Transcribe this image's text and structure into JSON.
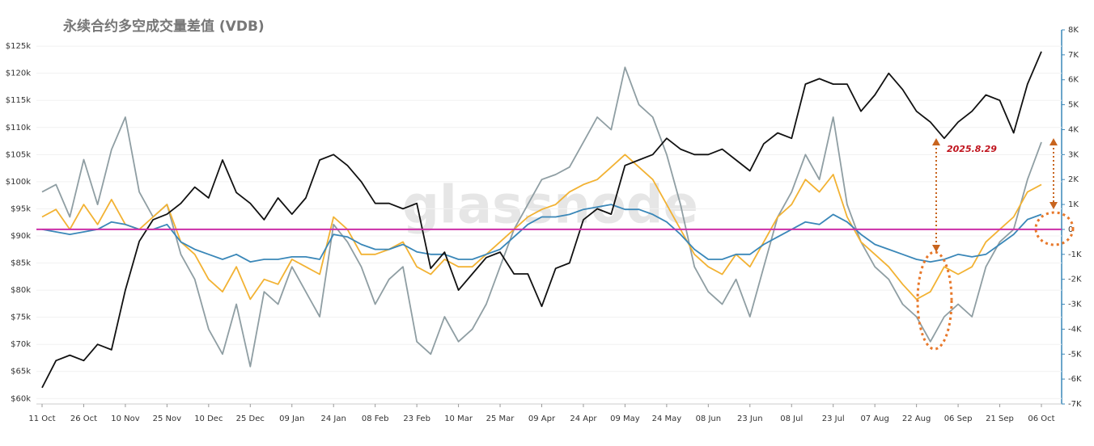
{
  "chart_data": {
    "type": "line",
    "title": "永续合约多空成交量差值 (VDB)",
    "watermark": "glassnode",
    "annotation": "2025.8.29",
    "x": [
      "11 Oct",
      "16 Oct",
      "21 Oct",
      "26 Oct",
      "31 Oct",
      "05 Nov",
      "10 Nov",
      "15 Nov",
      "20 Nov",
      "25 Nov",
      "30 Nov",
      "05 Dec",
      "10 Dec",
      "15 Dec",
      "20 Dec",
      "25 Dec",
      "30 Dec",
      "04 Jan",
      "09 Jan",
      "14 Jan",
      "19 Jan",
      "24 Jan",
      "29 Jan",
      "03 Feb",
      "08 Feb",
      "13 Feb",
      "18 Feb",
      "23 Feb",
      "28 Feb",
      "05 Mar",
      "10 Mar",
      "15 Mar",
      "20 Mar",
      "25 Mar",
      "30 Mar",
      "04 Apr",
      "09 Apr",
      "14 Apr",
      "19 Apr",
      "24 Apr",
      "29 Apr",
      "04 May",
      "09 May",
      "14 May",
      "19 May",
      "24 May",
      "29 May",
      "03 Jun",
      "08 Jun",
      "13 Jun",
      "18 Jun",
      "23 Jun",
      "28 Jun",
      "03 Jul",
      "08 Jul",
      "13 Jul",
      "18 Jul",
      "23 Jul",
      "28 Jul",
      "02 Aug",
      "07 Aug",
      "12 Aug",
      "17 Aug",
      "22 Aug",
      "27 Aug",
      "01 Sep",
      "06 Sep",
      "11 Sep",
      "16 Sep",
      "21 Sep",
      "26 Sep",
      "01 Oct",
      "06 Oct"
    ],
    "xticks": [
      "11 Oct",
      "26 Oct",
      "10 Nov",
      "25 Nov",
      "10 Dec",
      "25 Dec",
      "09 Jan",
      "24 Jan",
      "08 Feb",
      "23 Feb",
      "10 Mar",
      "25 Mar",
      "09 Apr",
      "24 Apr",
      "09 May",
      "24 May",
      "08 Jun",
      "23 Jun",
      "08 Jul",
      "23 Jul",
      "07 Aug",
      "22 Aug",
      "06 Sep",
      "21 Sep",
      "06 Oct"
    ],
    "ylim": [
      59000,
      128000
    ],
    "yticks": [
      {
        "value": 60000,
        "label": "$60k"
      },
      {
        "value": 65000,
        "label": "$65k"
      },
      {
        "value": 70000,
        "label": "$70k"
      },
      {
        "value": 75000,
        "label": "$75k"
      },
      {
        "value": 80000,
        "label": "$80k"
      },
      {
        "value": 85000,
        "label": "$85k"
      },
      {
        "value": 90000,
        "label": "$90k"
      },
      {
        "value": 95000,
        "label": "$95k"
      },
      {
        "value": 100000,
        "label": "$100k"
      },
      {
        "value": 105000,
        "label": "$105k"
      },
      {
        "value": 110000,
        "label": "$110k"
      },
      {
        "value": 115000,
        "label": "$115k"
      },
      {
        "value": 120000,
        "label": "$120k"
      },
      {
        "value": 125000,
        "label": "$125k"
      }
    ],
    "y2lim": [
      -7000,
      8000
    ],
    "y2ticks": [
      {
        "value": -7000,
        "label": "-7K"
      },
      {
        "value": -6000,
        "label": "-6K"
      },
      {
        "value": -5000,
        "label": "-5K"
      },
      {
        "value": -4000,
        "label": "-4K"
      },
      {
        "value": -3000,
        "label": "-3K"
      },
      {
        "value": -2000,
        "label": "-2K"
      },
      {
        "value": -1000,
        "label": "-1K"
      },
      0,
      {
        "value": 1000,
        "label": "1K"
      },
      {
        "value": 2000,
        "label": "2K"
      },
      {
        "value": 3000,
        "label": "3K"
      },
      {
        "value": 4000,
        "label": "4K"
      },
      {
        "value": 5000,
        "label": "5K"
      },
      {
        "value": 6000,
        "label": "6K"
      },
      {
        "value": 7000,
        "label": "7K"
      },
      {
        "value": 8000,
        "label": "8K"
      }
    ],
    "grid": true,
    "reference_line": {
      "axis": "y2",
      "value": 0,
      "color": "#cc2fa8"
    },
    "series": [
      {
        "color": "#8f9ea3",
        "axis": "y2",
        "values": [
          1500,
          1800,
          500,
          2800,
          1000,
          3200,
          4500,
          1500,
          500,
          1000,
          -1000,
          -2000,
          -4000,
          -5000,
          -3000,
          -5500,
          -2500,
          -3000,
          -1500,
          -2500,
          -3500,
          200,
          -500,
          -1500,
          -3000,
          -2000,
          -1500,
          -4500,
          -5000,
          -3500,
          -4500,
          -4000,
          -3000,
          -1500,
          0,
          1000,
          2000,
          2200,
          2500,
          3500,
          4500,
          4000,
          6500,
          5000,
          4500,
          3000,
          1000,
          -1500,
          -2500,
          -3000,
          -2000,
          -3500,
          -1500,
          500,
          1500,
          3000,
          2000,
          4500,
          1000,
          -500,
          -1500,
          -2000,
          -3000,
          -3500,
          -4500,
          -3500,
          -3000,
          -3500,
          -1500,
          -500,
          0,
          2000,
          3500
        ]
      },
      {
        "color": "#f2b233",
        "axis": "y2",
        "values": [
          500,
          800,
          0,
          1000,
          200,
          1200,
          200,
          0,
          500,
          1000,
          -500,
          -1000,
          -2000,
          -2500,
          -1500,
          -2800,
          -2000,
          -2200,
          -1200,
          -1500,
          -1800,
          500,
          0,
          -1000,
          -1000,
          -800,
          -500,
          -1500,
          -1800,
          -1200,
          -1500,
          -1500,
          -1000,
          -500,
          0,
          500,
          800,
          1000,
          1500,
          1800,
          2000,
          2500,
          3000,
          2500,
          2000,
          1000,
          0,
          -1000,
          -1500,
          -1800,
          -1000,
          -1500,
          -500,
          500,
          1000,
          2000,
          1500,
          2200,
          500,
          -500,
          -1000,
          -1500,
          -2200,
          -2800,
          -2500,
          -1500,
          -1800,
          -1500,
          -500,
          0,
          500,
          1500,
          1800
        ]
      },
      {
        "color": "#3a87b8",
        "axis": "y2",
        "values": [
          0,
          -100,
          -200,
          -100,
          0,
          300,
          200,
          0,
          0,
          200,
          -500,
          -800,
          -1000,
          -1200,
          -1000,
          -1300,
          -1200,
          -1200,
          -1100,
          -1100,
          -1200,
          -200,
          -300,
          -600,
          -800,
          -800,
          -600,
          -900,
          -1000,
          -1000,
          -1200,
          -1200,
          -1000,
          -800,
          -300,
          200,
          500,
          500,
          600,
          800,
          900,
          1000,
          800,
          800,
          600,
          300,
          -200,
          -800,
          -1200,
          -1200,
          -1000,
          -1000,
          -600,
          -300,
          0,
          300,
          200,
          600,
          300,
          -200,
          -600,
          -800,
          -1000,
          -1200,
          -1300,
          -1200,
          -1000,
          -1100,
          -1000,
          -600,
          -200,
          400,
          600
        ]
      },
      {
        "color": "#111111",
        "axis": "y",
        "values": [
          62000,
          67000,
          68000,
          67000,
          70000,
          69000,
          80000,
          89000,
          93000,
          94000,
          96000,
          99000,
          97000,
          104000,
          98000,
          96000,
          93000,
          97000,
          94000,
          97000,
          104000,
          105000,
          103000,
          100000,
          96000,
          96000,
          95000,
          96000,
          84000,
          87000,
          80000,
          83000,
          86000,
          87000,
          83000,
          83000,
          77000,
          84000,
          85000,
          93000,
          95000,
          94000,
          103000,
          104000,
          105000,
          108000,
          106000,
          105000,
          105000,
          106000,
          104000,
          102000,
          107000,
          109000,
          108000,
          118000,
          119000,
          118000,
          118000,
          113000,
          116000,
          120000,
          117000,
          113000,
          111000,
          108000,
          111000,
          113000,
          116000,
          115000,
          109000,
          118000,
          124000
        ]
      }
    ]
  }
}
